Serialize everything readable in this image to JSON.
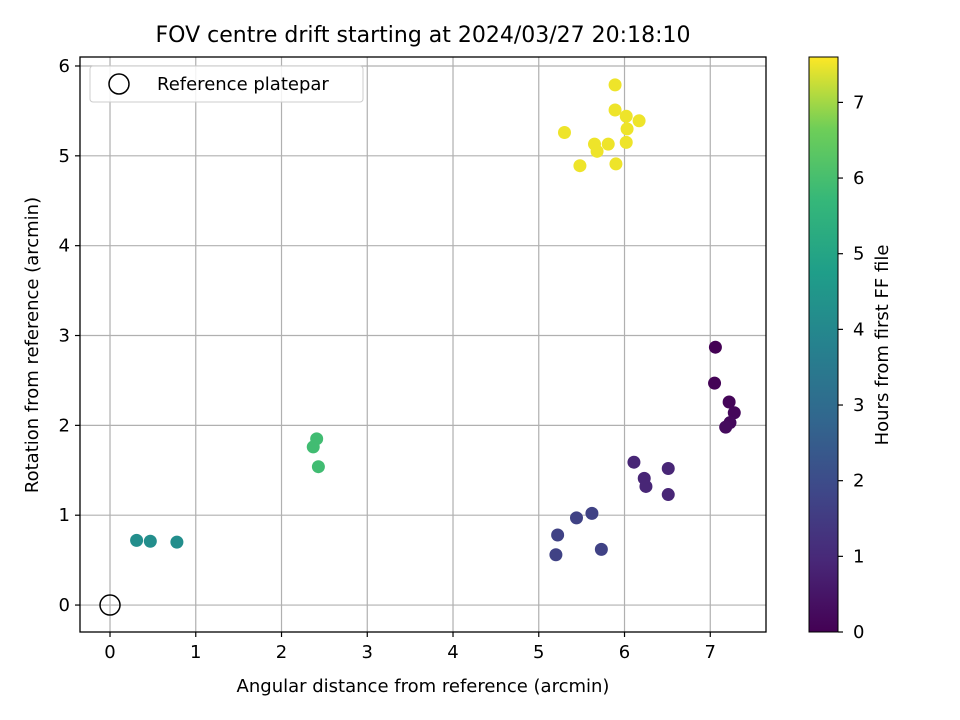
{
  "chart_data": {
    "type": "scatter",
    "title": "FOV centre drift starting at 2024/03/27 20:18:10",
    "xlabel": "Angular distance from reference (arcmin)",
    "ylabel": "Rotation from reference (arcmin)",
    "xlim": [
      -0.35,
      7.65
    ],
    "ylim": [
      -0.3,
      6.1
    ],
    "xticks": [
      "0",
      "1",
      "2",
      "3",
      "4",
      "5",
      "6",
      "7"
    ],
    "yticks": [
      "0",
      "1",
      "2",
      "3",
      "4",
      "5",
      "6"
    ],
    "grid": true,
    "legend": {
      "placement": "top-left",
      "entries": [
        {
          "label": "Reference platepar",
          "marker": "open-circle"
        }
      ]
    },
    "reference_point": {
      "x": 0,
      "y": 0
    },
    "colorbar": {
      "label": "Hours from first FF file",
      "range": [
        0,
        7.6
      ],
      "ticks": [
        "0",
        "1",
        "2",
        "3",
        "4",
        "5",
        "6",
        "7"
      ],
      "colormap": "viridis"
    },
    "points": [
      {
        "x": 7.06,
        "y": 2.87,
        "hours": 0.0
      },
      {
        "x": 7.05,
        "y": 2.47,
        "hours": 0.05
      },
      {
        "x": 7.22,
        "y": 2.26,
        "hours": 0.1
      },
      {
        "x": 7.28,
        "y": 2.14,
        "hours": 0.15
      },
      {
        "x": 7.23,
        "y": 2.03,
        "hours": 0.2
      },
      {
        "x": 7.18,
        "y": 1.98,
        "hours": 0.25
      },
      {
        "x": 6.11,
        "y": 1.59,
        "hours": 0.9
      },
      {
        "x": 6.51,
        "y": 1.52,
        "hours": 0.9
      },
      {
        "x": 6.23,
        "y": 1.41,
        "hours": 0.9
      },
      {
        "x": 6.25,
        "y": 1.32,
        "hours": 0.9
      },
      {
        "x": 6.51,
        "y": 1.23,
        "hours": 0.9
      },
      {
        "x": 5.62,
        "y": 1.02,
        "hours": 1.7
      },
      {
        "x": 5.44,
        "y": 0.97,
        "hours": 1.7
      },
      {
        "x": 5.22,
        "y": 0.78,
        "hours": 1.7
      },
      {
        "x": 5.73,
        "y": 0.62,
        "hours": 1.7
      },
      {
        "x": 5.2,
        "y": 0.56,
        "hours": 1.7
      },
      {
        "x": 0.31,
        "y": 0.72,
        "hours": 4.2
      },
      {
        "x": 0.47,
        "y": 0.71,
        "hours": 4.2
      },
      {
        "x": 0.78,
        "y": 0.7,
        "hours": 4.2
      },
      {
        "x": 2.41,
        "y": 1.85,
        "hours": 5.9
      },
      {
        "x": 2.37,
        "y": 1.76,
        "hours": 5.9
      },
      {
        "x": 2.43,
        "y": 1.54,
        "hours": 5.9
      },
      {
        "x": 5.89,
        "y": 5.79,
        "hours": 7.5
      },
      {
        "x": 5.89,
        "y": 5.51,
        "hours": 7.5
      },
      {
        "x": 6.02,
        "y": 5.44,
        "hours": 7.5
      },
      {
        "x": 6.17,
        "y": 5.39,
        "hours": 7.5
      },
      {
        "x": 6.03,
        "y": 5.3,
        "hours": 7.5
      },
      {
        "x": 5.3,
        "y": 5.26,
        "hours": 7.5
      },
      {
        "x": 6.02,
        "y": 5.15,
        "hours": 7.5
      },
      {
        "x": 5.65,
        "y": 5.13,
        "hours": 7.5
      },
      {
        "x": 5.81,
        "y": 5.13,
        "hours": 7.5
      },
      {
        "x": 5.68,
        "y": 5.05,
        "hours": 7.5
      },
      {
        "x": 5.9,
        "y": 4.91,
        "hours": 7.5
      },
      {
        "x": 5.48,
        "y": 4.89,
        "hours": 7.5
      }
    ]
  }
}
